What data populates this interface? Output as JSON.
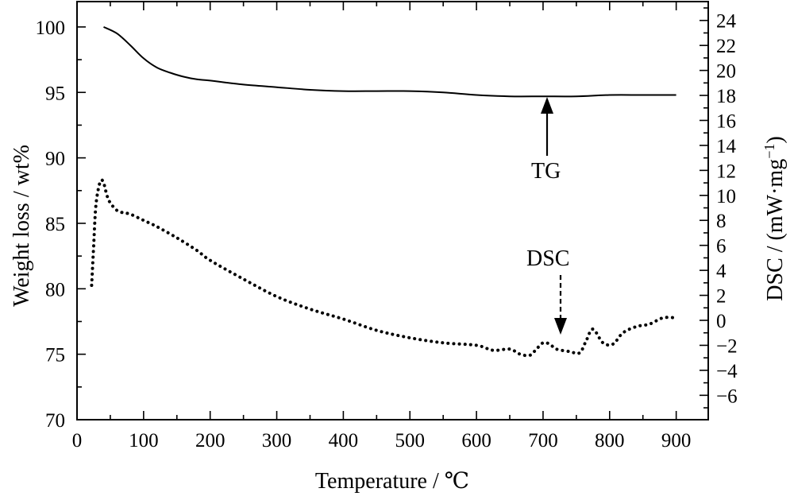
{
  "chart_data": {
    "type": "line",
    "xlabel": "Temperature / ℃",
    "ylabel_left": "Weight loss / wt%",
    "ylabel_right": "DSC / (mW·mg",
    "ylabel_right_sup": "−1",
    "ylabel_right_close": ")",
    "xlim": [
      0,
      950
    ],
    "ylim_left": [
      70,
      102
    ],
    "ylim_right": [
      -8,
      25
    ],
    "x_ticks": [
      0,
      100,
      200,
      300,
      400,
      500,
      600,
      700,
      800,
      900
    ],
    "x_tick_labels": [
      "0",
      "100",
      "200",
      "300",
      "400",
      "500",
      "600",
      "700",
      "800",
      "900"
    ],
    "y_left_ticks": [
      70,
      75,
      80,
      85,
      90,
      95,
      100
    ],
    "y_left_tick_labels": [
      "70",
      "75",
      "80",
      "85",
      "90",
      "95",
      "100"
    ],
    "y_right_ticks": [
      -6,
      -4,
      -2,
      0,
      2,
      4,
      6,
      8,
      10,
      12,
      14,
      16,
      18,
      20,
      22,
      24
    ],
    "y_right_tick_labels": [
      "−6",
      "−4",
      "−2",
      "0",
      "2",
      "4",
      "6",
      "8",
      "10",
      "12",
      "14",
      "16",
      "18",
      "20",
      "22",
      "24"
    ],
    "series": [
      {
        "name": "TG",
        "axis": "left",
        "style": "solid",
        "x": [
          40,
          60,
          80,
          100,
          120,
          140,
          160,
          180,
          200,
          250,
          300,
          350,
          400,
          450,
          500,
          550,
          600,
          650,
          700,
          750,
          800,
          850,
          900
        ],
        "y": [
          100.0,
          99.5,
          98.6,
          97.6,
          96.9,
          96.5,
          96.2,
          96.0,
          95.9,
          95.6,
          95.4,
          95.2,
          95.1,
          95.1,
          95.1,
          95.0,
          94.8,
          94.7,
          94.7,
          94.7,
          94.8,
          94.8,
          94.8
        ]
      },
      {
        "name": "DSC",
        "axis": "right",
        "style": "dotted",
        "x": [
          22,
          25,
          28,
          32,
          36,
          40,
          45,
          50,
          60,
          70,
          80,
          100,
          120,
          150,
          180,
          200,
          250,
          300,
          350,
          400,
          450,
          500,
          550,
          600,
          625,
          650,
          665,
          680,
          690,
          700,
          710,
          720,
          740,
          755,
          765,
          775,
          790,
          805,
          820,
          840,
          860,
          880,
          900
        ],
        "y": [
          2.8,
          6.0,
          9.0,
          10.5,
          11.2,
          11.0,
          10.0,
          9.4,
          8.8,
          8.6,
          8.5,
          8.0,
          7.5,
          6.6,
          5.6,
          4.8,
          3.3,
          1.9,
          0.9,
          0.1,
          -0.8,
          -1.4,
          -1.8,
          -2.0,
          -2.4,
          -2.3,
          -2.7,
          -2.8,
          -2.3,
          -1.8,
          -1.9,
          -2.3,
          -2.5,
          -2.6,
          -1.6,
          -0.7,
          -1.8,
          -1.9,
          -1.0,
          -0.5,
          -0.3,
          0.2,
          0.2
        ]
      }
    ],
    "annotations": [
      "TG",
      "DSC"
    ],
    "grid": false,
    "legend": "none"
  }
}
